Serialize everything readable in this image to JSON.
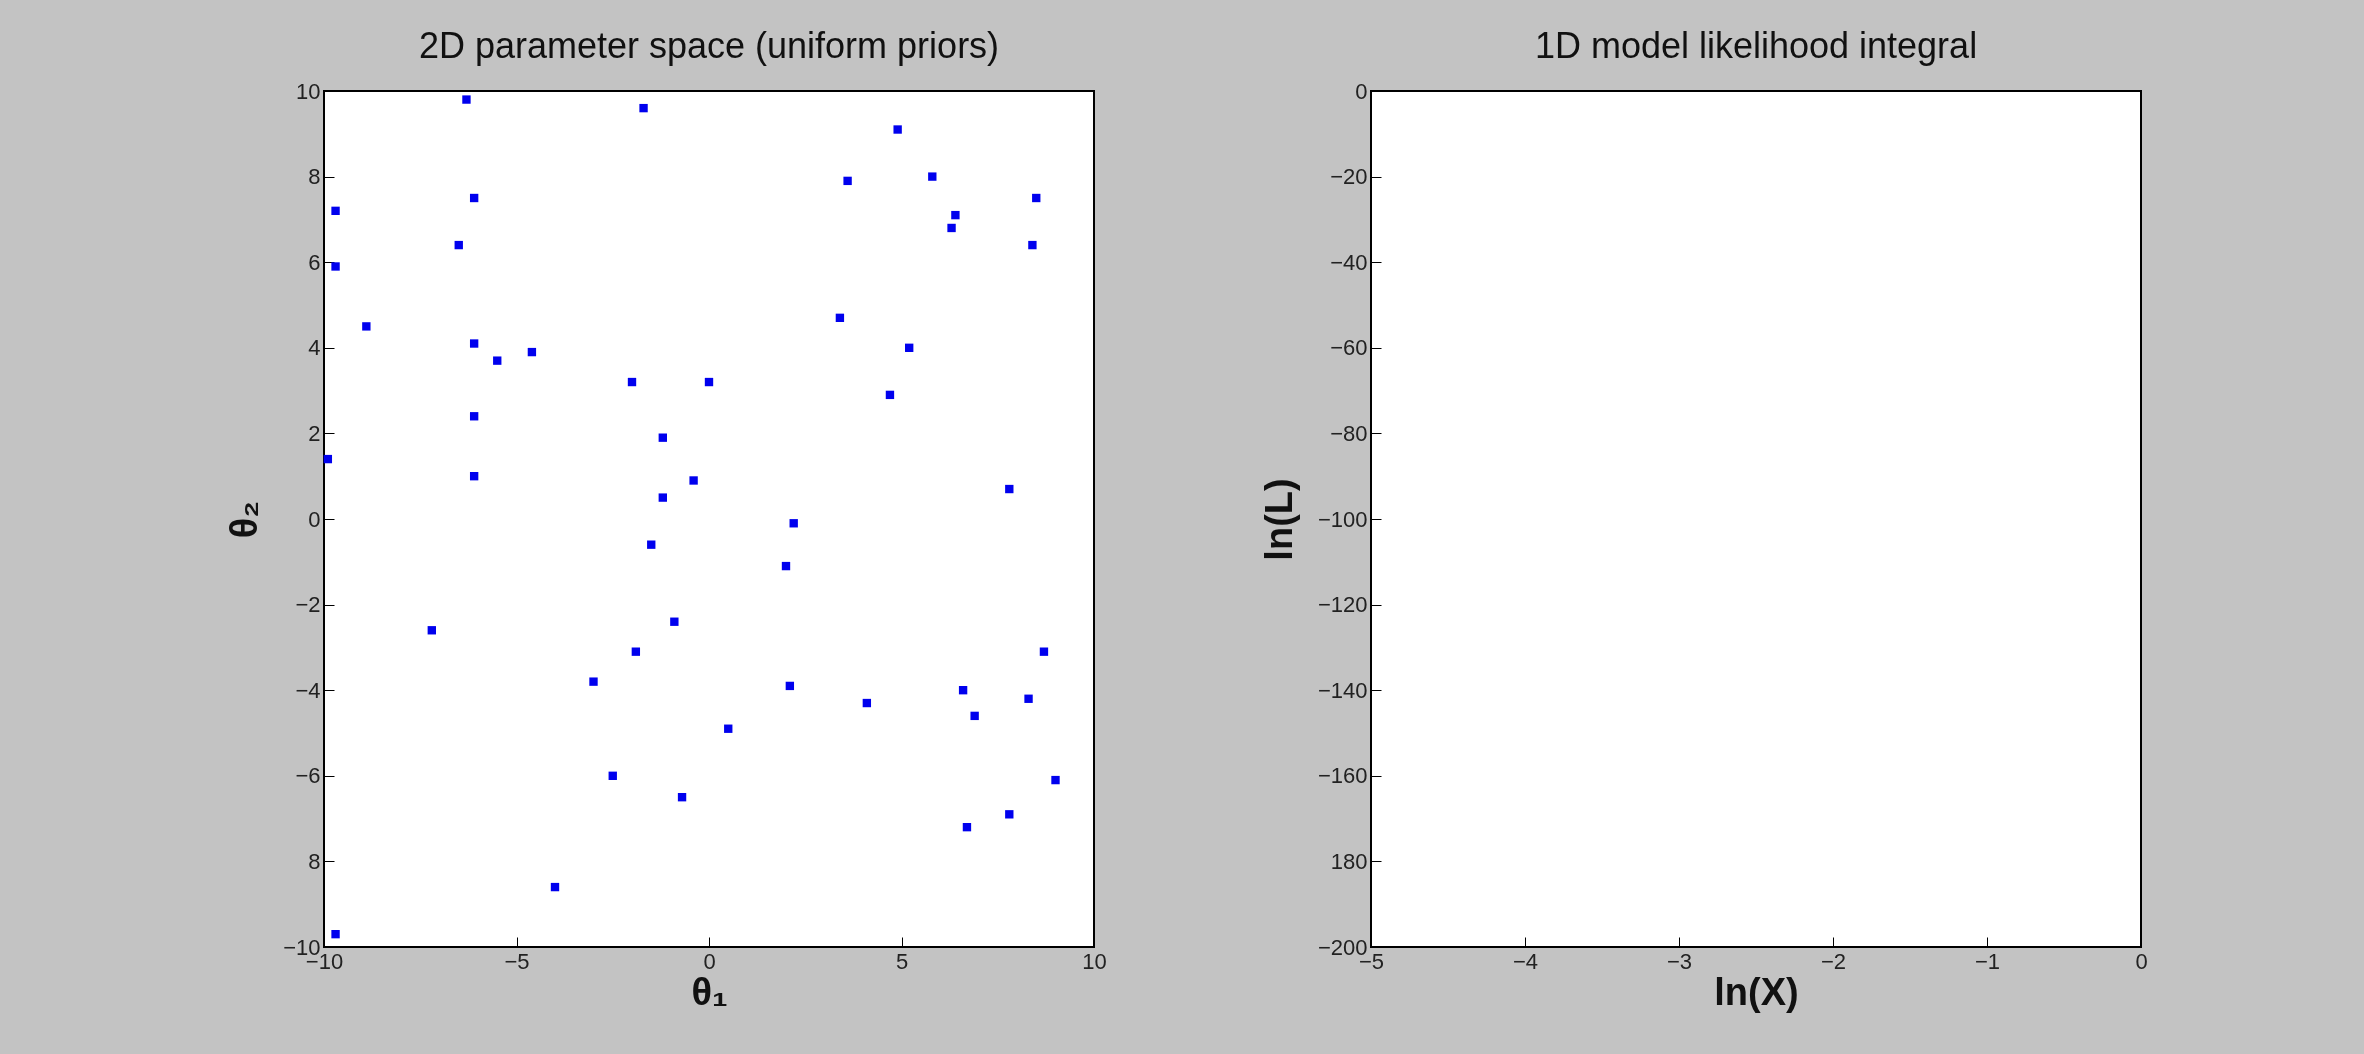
{
  "chart_data": [
    {
      "type": "scatter",
      "title": "2D parameter space (uniform priors)",
      "xlabel": "θ₁",
      "ylabel": "θ₂",
      "color": "#0000ee",
      "marker": "square",
      "grid": false,
      "x": [
        -6.3,
        -1.7,
        -6.1,
        -9.7,
        -6.5,
        -9.7,
        -8.9,
        -6.1,
        -5.5,
        -4.6,
        -2.0,
        0.0,
        -6.1,
        -1.2,
        -9.9,
        -6.1,
        -0.4,
        -1.2,
        4.9,
        3.6,
        5.8,
        8.5,
        6.4,
        6.3,
        8.4,
        3.4,
        5.2,
        4.7,
        7.8,
        2.2,
        -1.5,
        -0.9,
        -7.2,
        -1.9,
        -3.0,
        -2.5,
        -0.7,
        -4.0,
        -9.7,
        2.0,
        8.7,
        2.1,
        4.1,
        6.6,
        6.9,
        8.3,
        0.5,
        9.0,
        6.7,
        7.8
      ],
      "values": [
        9.8,
        9.6,
        7.5,
        7.2,
        6.4,
        5.9,
        4.5,
        4.1,
        3.7,
        3.9,
        3.2,
        3.2,
        2.4,
        1.9,
        1.4,
        1.0,
        0.9,
        0.5,
        9.1,
        7.9,
        8.0,
        7.5,
        7.1,
        6.8,
        6.4,
        4.7,
        4.0,
        2.9,
        0.7,
        -0.1,
        -0.6,
        -2.4,
        -2.6,
        -3.1,
        -3.8,
        -6.0,
        -6.5,
        -8.6,
        -9.7,
        -1.1,
        -3.1,
        -3.9,
        -4.3,
        -4.0,
        -4.6,
        -4.2,
        -4.9,
        -6.1,
        -7.2,
        -6.9
      ],
      "xlim": [
        -10,
        10
      ],
      "xticks": [
        -10,
        -5,
        0,
        5,
        10
      ],
      "ylim": [
        -10,
        10
      ],
      "yticks": [
        -10,
        {
          "value": -8,
          "label": "8"
        },
        -6,
        -4,
        -2,
        0,
        2,
        4,
        6,
        8,
        10
      ]
    },
    {
      "type": "line",
      "title": "1D model likelihood integral",
      "xlabel": "ln(X)",
      "ylabel": "ln(L)",
      "grid": false,
      "xlim": [
        -5,
        0
      ],
      "xticks": [
        -5,
        -4,
        -3,
        -2,
        -1,
        0
      ],
      "ylim": [
        -200,
        0
      ],
      "yticks": [
        -200,
        {
          "value": -180,
          "label": "180"
        },
        -160,
        -140,
        -120,
        -100,
        -80,
        -60,
        -40,
        -20,
        0
      ]
    }
  ]
}
